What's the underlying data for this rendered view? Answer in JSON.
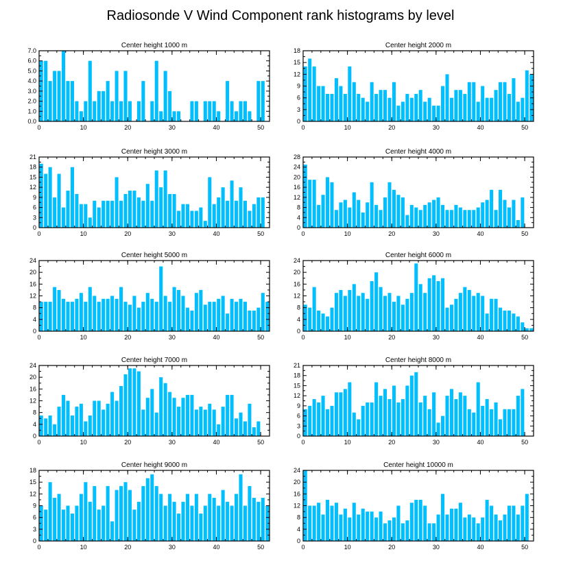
{
  "title": "Radiosonde V Wind Component rank histograms by level",
  "colors": {
    "bar": "#00BFFF",
    "axis": "#000000",
    "background": "#FFFFFF"
  },
  "chart_data": [
    {
      "type": "bar",
      "title": "Center height 1000 m",
      "x": [
        0,
        1,
        2,
        3,
        4,
        5,
        6,
        7,
        8,
        9,
        10,
        11,
        12,
        13,
        14,
        15,
        16,
        17,
        18,
        19,
        20,
        21,
        22,
        23,
        24,
        25,
        26,
        27,
        28,
        29,
        30,
        31,
        32,
        33,
        34,
        35,
        36,
        37,
        38,
        39,
        40,
        41,
        42,
        43,
        44,
        45,
        46,
        47,
        48,
        49,
        50,
        51
      ],
      "values": [
        6,
        6,
        4,
        5,
        5,
        7,
        4,
        4,
        2,
        1,
        2,
        6,
        2,
        3,
        3,
        4,
        2,
        5,
        2,
        5,
        2,
        0,
        2,
        4,
        0,
        2,
        6,
        1,
        5,
        3,
        1,
        1,
        0,
        0,
        2,
        2,
        0,
        2,
        2,
        2,
        1,
        0,
        4,
        2,
        1,
        2,
        2,
        1,
        0,
        4,
        4,
        0
      ],
      "xlim": [
        0,
        52
      ],
      "ylim": [
        0,
        7
      ],
      "xticks": [
        0,
        10,
        20,
        30,
        40,
        50
      ],
      "xtick_labels": [
        "0",
        "10",
        "20",
        "30",
        "40",
        "50"
      ],
      "yticks": [
        0,
        1,
        2,
        3,
        4,
        5,
        6,
        7
      ],
      "ytick_labels": [
        "0.0",
        "1.0",
        "2.0",
        "3.0",
        "4.0",
        "5.0",
        "6.0",
        "7.0"
      ]
    },
    {
      "type": "bar",
      "title": "Center height 2000 m",
      "x": [
        0,
        1,
        2,
        3,
        4,
        5,
        6,
        7,
        8,
        9,
        10,
        11,
        12,
        13,
        14,
        15,
        16,
        17,
        18,
        19,
        20,
        21,
        22,
        23,
        24,
        25,
        26,
        27,
        28,
        29,
        30,
        31,
        32,
        33,
        34,
        35,
        36,
        37,
        38,
        39,
        40,
        41,
        42,
        43,
        44,
        45,
        46,
        47,
        48,
        49,
        50,
        51
      ],
      "values": [
        14,
        16,
        14,
        9,
        9,
        7,
        7,
        11,
        9,
        7,
        14,
        10,
        7,
        6,
        5,
        10,
        7,
        8,
        8,
        6,
        10,
        4,
        5,
        7,
        6,
        7,
        8,
        5,
        6,
        4,
        4,
        9,
        12,
        6,
        8,
        8,
        7,
        10,
        10,
        5,
        9,
        6,
        6,
        8,
        10,
        10,
        7,
        11,
        5,
        6,
        13,
        12
      ],
      "xlim": [
        0,
        52
      ],
      "ylim": [
        0,
        18
      ],
      "xticks": [
        0,
        10,
        20,
        30,
        40,
        50
      ],
      "xtick_labels": [
        "0",
        "10",
        "20",
        "30",
        "40",
        "50"
      ],
      "yticks": [
        0,
        3,
        6,
        9,
        12,
        15,
        18
      ],
      "ytick_labels": [
        "0",
        "3",
        "6",
        "9",
        "12",
        "15",
        "18"
      ]
    },
    {
      "type": "bar",
      "title": "Center height 3000 m",
      "x": [
        0,
        1,
        2,
        3,
        4,
        5,
        6,
        7,
        8,
        9,
        10,
        11,
        12,
        13,
        14,
        15,
        16,
        17,
        18,
        19,
        20,
        21,
        22,
        23,
        24,
        25,
        26,
        27,
        28,
        29,
        30,
        31,
        32,
        33,
        34,
        35,
        36,
        37,
        38,
        39,
        40,
        41,
        42,
        43,
        44,
        45,
        46,
        47,
        48,
        49,
        50,
        51
      ],
      "values": [
        19,
        16,
        18,
        9,
        16,
        6,
        11,
        18,
        10,
        7,
        7,
        3,
        8,
        6,
        8,
        8,
        8,
        15,
        8,
        10,
        11,
        11,
        9,
        8,
        13,
        8,
        17,
        12,
        17,
        10,
        10,
        5,
        7,
        7,
        5,
        5,
        6,
        2,
        15,
        7,
        9,
        12,
        8,
        14,
        8,
        12,
        8,
        5,
        7,
        9,
        9,
        0
      ],
      "xlim": [
        0,
        52
      ],
      "ylim": [
        0,
        21
      ],
      "xticks": [
        0,
        10,
        20,
        30,
        40,
        50
      ],
      "xtick_labels": [
        "0",
        "10",
        "20",
        "30",
        "40",
        "50"
      ],
      "yticks": [
        0,
        3,
        6,
        9,
        12,
        15,
        18,
        21
      ],
      "ytick_labels": [
        "0",
        "3",
        "6",
        "9",
        "12",
        "15",
        "18",
        "21"
      ]
    },
    {
      "type": "bar",
      "title": "Center height 4000 m",
      "x": [
        0,
        1,
        2,
        3,
        4,
        5,
        6,
        7,
        8,
        9,
        10,
        11,
        12,
        13,
        14,
        15,
        16,
        17,
        18,
        19,
        20,
        21,
        22,
        23,
        24,
        25,
        26,
        27,
        28,
        29,
        30,
        31,
        32,
        33,
        34,
        35,
        36,
        37,
        38,
        39,
        40,
        41,
        42,
        43,
        44,
        45,
        46,
        47,
        48,
        49,
        50,
        51
      ],
      "values": [
        25,
        19,
        19,
        9,
        13,
        20,
        18,
        7,
        10,
        11,
        8,
        14,
        11,
        6,
        10,
        18,
        9,
        7,
        12,
        18,
        15,
        13,
        12,
        5,
        9,
        8,
        7,
        9,
        10,
        11,
        12,
        9,
        7,
        7,
        9,
        8,
        7,
        7,
        7,
        8,
        10,
        11,
        15,
        7,
        15,
        11,
        8,
        11,
        3,
        12,
        0,
        0
      ],
      "xlim": [
        0,
        52
      ],
      "ylim": [
        0,
        28
      ],
      "xticks": [
        0,
        10,
        20,
        30,
        40,
        50
      ],
      "xtick_labels": [
        "0",
        "10",
        "20",
        "30",
        "40",
        "50"
      ],
      "yticks": [
        0,
        4,
        8,
        12,
        16,
        20,
        24,
        28
      ],
      "ytick_labels": [
        "0",
        "4",
        "8",
        "12",
        "16",
        "20",
        "24",
        "28"
      ]
    },
    {
      "type": "bar",
      "title": "Center height 5000 m",
      "x": [
        0,
        1,
        2,
        3,
        4,
        5,
        6,
        7,
        8,
        9,
        10,
        11,
        12,
        13,
        14,
        15,
        16,
        17,
        18,
        19,
        20,
        21,
        22,
        23,
        24,
        25,
        26,
        27,
        28,
        29,
        30,
        31,
        32,
        33,
        34,
        35,
        36,
        37,
        38,
        39,
        40,
        41,
        42,
        43,
        44,
        45,
        46,
        47,
        48,
        49,
        50,
        51
      ],
      "values": [
        10,
        10,
        10,
        15,
        14,
        11,
        10,
        10,
        11,
        13,
        10,
        15,
        12,
        10,
        11,
        11,
        12,
        11,
        15,
        10,
        9,
        12,
        8,
        10,
        13,
        11,
        10,
        22,
        12,
        10,
        15,
        14,
        12,
        8,
        7,
        13,
        14,
        9,
        10,
        10,
        11,
        12,
        6,
        11,
        10,
        11,
        10,
        7,
        7,
        8,
        13,
        10
      ],
      "xlim": [
        0,
        52
      ],
      "ylim": [
        0,
        24
      ],
      "xticks": [
        0,
        10,
        20,
        30,
        40,
        50
      ],
      "xtick_labels": [
        "0",
        "10",
        "20",
        "30",
        "40",
        "50"
      ],
      "yticks": [
        0,
        4,
        8,
        12,
        16,
        20,
        24
      ],
      "ytick_labels": [
        "0",
        "4",
        "8",
        "12",
        "16",
        "20",
        "24"
      ]
    },
    {
      "type": "bar",
      "title": "Center height 6000 m",
      "x": [
        0,
        1,
        2,
        3,
        4,
        5,
        6,
        7,
        8,
        9,
        10,
        11,
        12,
        13,
        14,
        15,
        16,
        17,
        18,
        19,
        20,
        21,
        22,
        23,
        24,
        25,
        26,
        27,
        28,
        29,
        30,
        31,
        32,
        33,
        34,
        35,
        36,
        37,
        38,
        39,
        40,
        41,
        42,
        43,
        44,
        45,
        46,
        47,
        48,
        49,
        50,
        51
      ],
      "values": [
        9,
        8,
        15,
        7,
        6,
        5,
        8,
        13,
        14,
        12,
        14,
        16,
        12,
        13,
        11,
        17,
        20,
        15,
        12,
        13,
        10,
        12,
        9,
        11,
        13,
        23,
        16,
        13,
        18,
        19,
        17,
        18,
        8,
        9,
        11,
        13,
        15,
        14,
        12,
        13,
        12,
        6,
        11,
        11,
        8,
        7,
        7,
        6,
        5,
        3,
        1,
        1
      ],
      "xlim": [
        0,
        52
      ],
      "ylim": [
        0,
        24
      ],
      "xticks": [
        0,
        10,
        20,
        30,
        40,
        50
      ],
      "xtick_labels": [
        "0",
        "10",
        "20",
        "30",
        "40",
        "50"
      ],
      "yticks": [
        0,
        4,
        8,
        12,
        16,
        20,
        24
      ],
      "ytick_labels": [
        "0",
        "4",
        "8",
        "12",
        "16",
        "20",
        "24"
      ]
    },
    {
      "type": "bar",
      "title": "Center height 7000 m",
      "x": [
        0,
        1,
        2,
        3,
        4,
        5,
        6,
        7,
        8,
        9,
        10,
        11,
        12,
        13,
        14,
        15,
        16,
        17,
        18,
        19,
        20,
        21,
        22,
        23,
        24,
        25,
        26,
        27,
        28,
        29,
        30,
        31,
        32,
        33,
        34,
        35,
        36,
        37,
        38,
        39,
        40,
        41,
        42,
        43,
        44,
        45,
        46,
        47,
        48,
        49,
        50,
        51
      ],
      "values": [
        7,
        6,
        7,
        4,
        10,
        14,
        12,
        7,
        10,
        11,
        5,
        7,
        12,
        12,
        9,
        11,
        15,
        12,
        17,
        21,
        23,
        23,
        22,
        9,
        13,
        16,
        8,
        20,
        18,
        15,
        13,
        10,
        13,
        14,
        14,
        9,
        10,
        9,
        11,
        9,
        4,
        10,
        14,
        14,
        6,
        8,
        5,
        11,
        3,
        5,
        0,
        0
      ],
      "xlim": [
        0,
        52
      ],
      "ylim": [
        0,
        24
      ],
      "xticks": [
        0,
        10,
        20,
        30,
        40,
        50
      ],
      "xtick_labels": [
        "0",
        "10",
        "20",
        "30",
        "40",
        "50"
      ],
      "yticks": [
        0,
        4,
        8,
        12,
        16,
        20,
        24
      ],
      "ytick_labels": [
        "0",
        "4",
        "8",
        "12",
        "16",
        "20",
        "24"
      ]
    },
    {
      "type": "bar",
      "title": "Center height 8000 m",
      "x": [
        0,
        1,
        2,
        3,
        4,
        5,
        6,
        7,
        8,
        9,
        10,
        11,
        12,
        13,
        14,
        15,
        16,
        17,
        18,
        19,
        20,
        21,
        22,
        23,
        24,
        25,
        26,
        27,
        28,
        29,
        30,
        31,
        32,
        33,
        34,
        35,
        36,
        37,
        38,
        39,
        40,
        41,
        42,
        43,
        44,
        45,
        46,
        47,
        48,
        49,
        50,
        51
      ],
      "values": [
        8,
        9,
        11,
        10,
        12,
        8,
        9,
        13,
        13,
        14,
        16,
        7,
        5,
        9,
        10,
        10,
        16,
        12,
        14,
        11,
        15,
        10,
        11,
        15,
        18,
        19,
        10,
        12,
        8,
        13,
        4,
        6,
        12,
        14,
        11,
        13,
        12,
        8,
        7,
        16,
        9,
        11,
        8,
        10,
        5,
        8,
        8,
        8,
        12,
        14,
        0,
        0
      ],
      "xlim": [
        0,
        52
      ],
      "ylim": [
        0,
        21
      ],
      "xticks": [
        0,
        10,
        20,
        30,
        40,
        50
      ],
      "xtick_labels": [
        "0",
        "10",
        "20",
        "30",
        "40",
        "50"
      ],
      "yticks": [
        0,
        3,
        6,
        9,
        12,
        15,
        18,
        21
      ],
      "ytick_labels": [
        "0",
        "3",
        "6",
        "9",
        "12",
        "15",
        "18",
        "21"
      ]
    },
    {
      "type": "bar",
      "title": "Center height 9000 m",
      "x": [
        0,
        1,
        2,
        3,
        4,
        5,
        6,
        7,
        8,
        9,
        10,
        11,
        12,
        13,
        14,
        15,
        16,
        17,
        18,
        19,
        20,
        21,
        22,
        23,
        24,
        25,
        26,
        27,
        28,
        29,
        30,
        31,
        32,
        33,
        34,
        35,
        36,
        37,
        38,
        39,
        40,
        41,
        42,
        43,
        44,
        45,
        46,
        47,
        48,
        49,
        50,
        51
      ],
      "values": [
        9,
        8,
        15,
        11,
        12,
        8,
        9,
        7,
        9,
        12,
        15,
        10,
        14,
        8,
        9,
        14,
        5,
        13,
        14,
        15,
        13,
        8,
        10,
        14,
        16,
        17,
        14,
        12,
        9,
        12,
        10,
        7,
        10,
        12,
        9,
        12,
        7,
        9,
        12,
        11,
        9,
        13,
        10,
        9,
        12,
        17,
        9,
        14,
        11,
        10,
        11,
        9
      ],
      "xlim": [
        0,
        52
      ],
      "ylim": [
        0,
        18
      ],
      "xticks": [
        0,
        10,
        20,
        30,
        40,
        50
      ],
      "xtick_labels": [
        "0",
        "10",
        "20",
        "30",
        "40",
        "50"
      ],
      "yticks": [
        0,
        3,
        6,
        9,
        12,
        15,
        18
      ],
      "ytick_labels": [
        "0",
        "3",
        "6",
        "9",
        "12",
        "15",
        "18"
      ]
    },
    {
      "type": "bar",
      "title": "Center height 10000 m",
      "x": [
        0,
        1,
        2,
        3,
        4,
        5,
        6,
        7,
        8,
        9,
        10,
        11,
        12,
        13,
        14,
        15,
        16,
        17,
        18,
        19,
        20,
        21,
        22,
        23,
        24,
        25,
        26,
        27,
        28,
        29,
        30,
        31,
        32,
        33,
        34,
        35,
        36,
        37,
        38,
        39,
        40,
        41,
        42,
        43,
        44,
        45,
        46,
        47,
        48,
        49,
        50,
        51
      ],
      "values": [
        24,
        12,
        12,
        13,
        9,
        14,
        12,
        13,
        9,
        11,
        8,
        13,
        9,
        11,
        10,
        10,
        8,
        10,
        6,
        7,
        8,
        12,
        6,
        7,
        13,
        14,
        14,
        12,
        6,
        6,
        9,
        16,
        9,
        11,
        11,
        13,
        8,
        9,
        8,
        6,
        8,
        14,
        12,
        9,
        7,
        9,
        12,
        12,
        9,
        12,
        16,
        0
      ],
      "xlim": [
        0,
        52
      ],
      "ylim": [
        0,
        24
      ],
      "xticks": [
        0,
        10,
        20,
        30,
        40,
        50
      ],
      "xtick_labels": [
        "0",
        "10",
        "20",
        "30",
        "40",
        "50"
      ],
      "yticks": [
        0,
        4,
        8,
        12,
        16,
        20,
        24
      ],
      "ytick_labels": [
        "0",
        "4",
        "8",
        "12",
        "16",
        "20",
        "24"
      ]
    }
  ]
}
